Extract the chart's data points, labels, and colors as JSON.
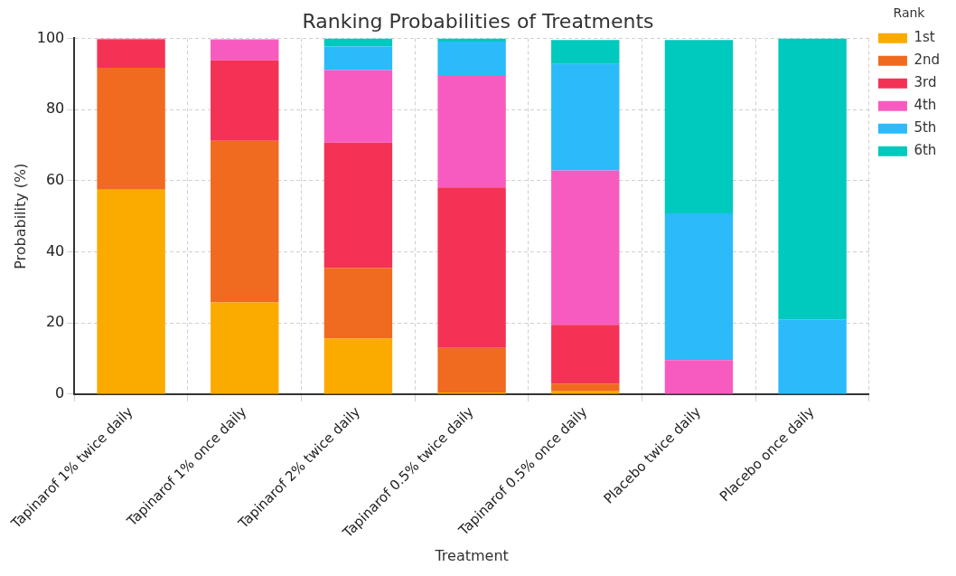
{
  "chart_data": {
    "type": "bar",
    "title": "Ranking Probabilities of Treatments",
    "xlabel": "Treatment",
    "ylabel": "Probability (%)",
    "legend_title": "Rank",
    "categories": [
      "Tapinarof 1% twice daily",
      "Tapinarof 1% once daily",
      "Tapinarof 2% twice daily",
      "Tapinarof 0.5% twice daily",
      "Tapinarof 0.5% once daily",
      "Placebo twice daily",
      "Placebo once daily"
    ],
    "stacked": true,
    "ylim": [
      0,
      100
    ],
    "yticks": [
      0,
      20,
      40,
      60,
      80,
      100
    ],
    "grid": true,
    "legend": "top right",
    "series": [
      {
        "name": "1st",
        "color": "#fbab00",
        "values": [
          57.5,
          25.8,
          15.6,
          0.5,
          0.8,
          0,
          0
        ]
      },
      {
        "name": "2nd",
        "color": "#f06a20",
        "values": [
          34.2,
          45.4,
          19.9,
          12.5,
          2.2,
          0,
          0
        ]
      },
      {
        "name": "3rd",
        "color": "#f43256",
        "values": [
          8.0,
          22.6,
          35.2,
          45.1,
          16.5,
          0,
          0
        ]
      },
      {
        "name": "4th",
        "color": "#f75bc0",
        "values": [
          0.3,
          5.9,
          20.4,
          31.6,
          43.4,
          9.6,
          0
        ]
      },
      {
        "name": "5th",
        "color": "#2bbafa",
        "values": [
          0,
          null,
          6.6,
          9.4,
          29.9,
          41.2,
          21.0
        ]
      },
      {
        "name": "6th",
        "color": "#00c9bd",
        "values": [
          0,
          0,
          2.3,
          0.9,
          6.7,
          48.7,
          79.0
        ]
      }
    ]
  }
}
